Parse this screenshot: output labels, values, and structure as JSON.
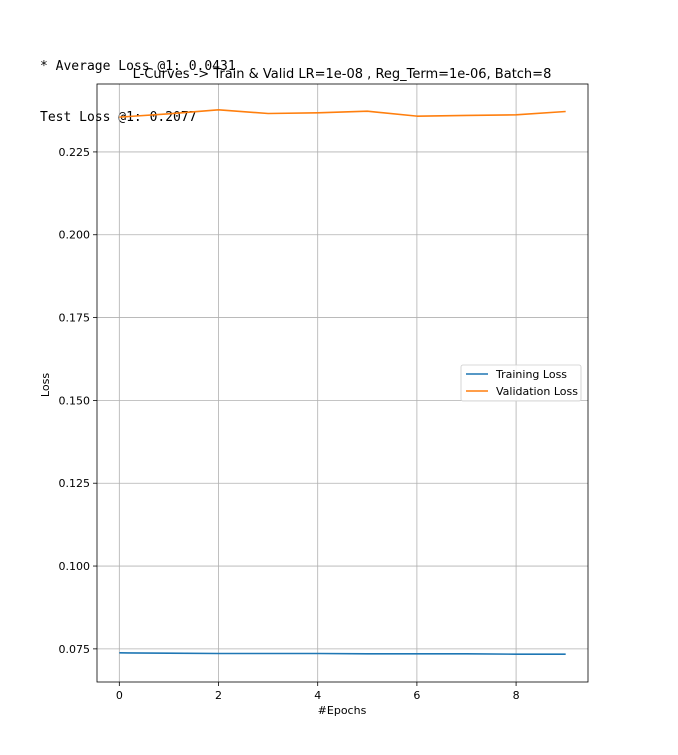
{
  "console": {
    "line1": "* Average Loss @1: 0.0431",
    "line2": "Test Loss @1: 0.2077"
  },
  "chart_data": {
    "type": "line",
    "title": "L-Curves -> Train & Valid LR=1e-08 , Reg_Term=1e-06, Batch=8",
    "xlabel": "#Epochs",
    "ylabel": "Loss",
    "xlim": [
      -0.45,
      9.45
    ],
    "ylim": [
      0.065,
      0.2455
    ],
    "xticks": [
      0,
      2,
      4,
      6,
      8
    ],
    "xtick_labels": [
      "0",
      "2",
      "4",
      "6",
      "8"
    ],
    "yticks": [
      0.075,
      0.1,
      0.125,
      0.15,
      0.175,
      0.2,
      0.225
    ],
    "ytick_labels": [
      "0.075",
      "0.100",
      "0.125",
      "0.150",
      "0.175",
      "0.200",
      "0.225"
    ],
    "grid": true,
    "legend_position": "center-right",
    "x": [
      0,
      1,
      2,
      3,
      4,
      5,
      6,
      7,
      8,
      9
    ],
    "series": [
      {
        "name": "Training Loss",
        "color": "#1f77b4",
        "values": [
          0.0738,
          0.0737,
          0.0736,
          0.0736,
          0.0736,
          0.0735,
          0.0735,
          0.0735,
          0.0734,
          0.0734
        ]
      },
      {
        "name": "Validation Loss",
        "color": "#ff7f0e",
        "values": [
          0.2355,
          0.2365,
          0.2377,
          0.2366,
          0.2368,
          0.2373,
          0.2358,
          0.236,
          0.2362,
          0.2372
        ]
      }
    ]
  }
}
